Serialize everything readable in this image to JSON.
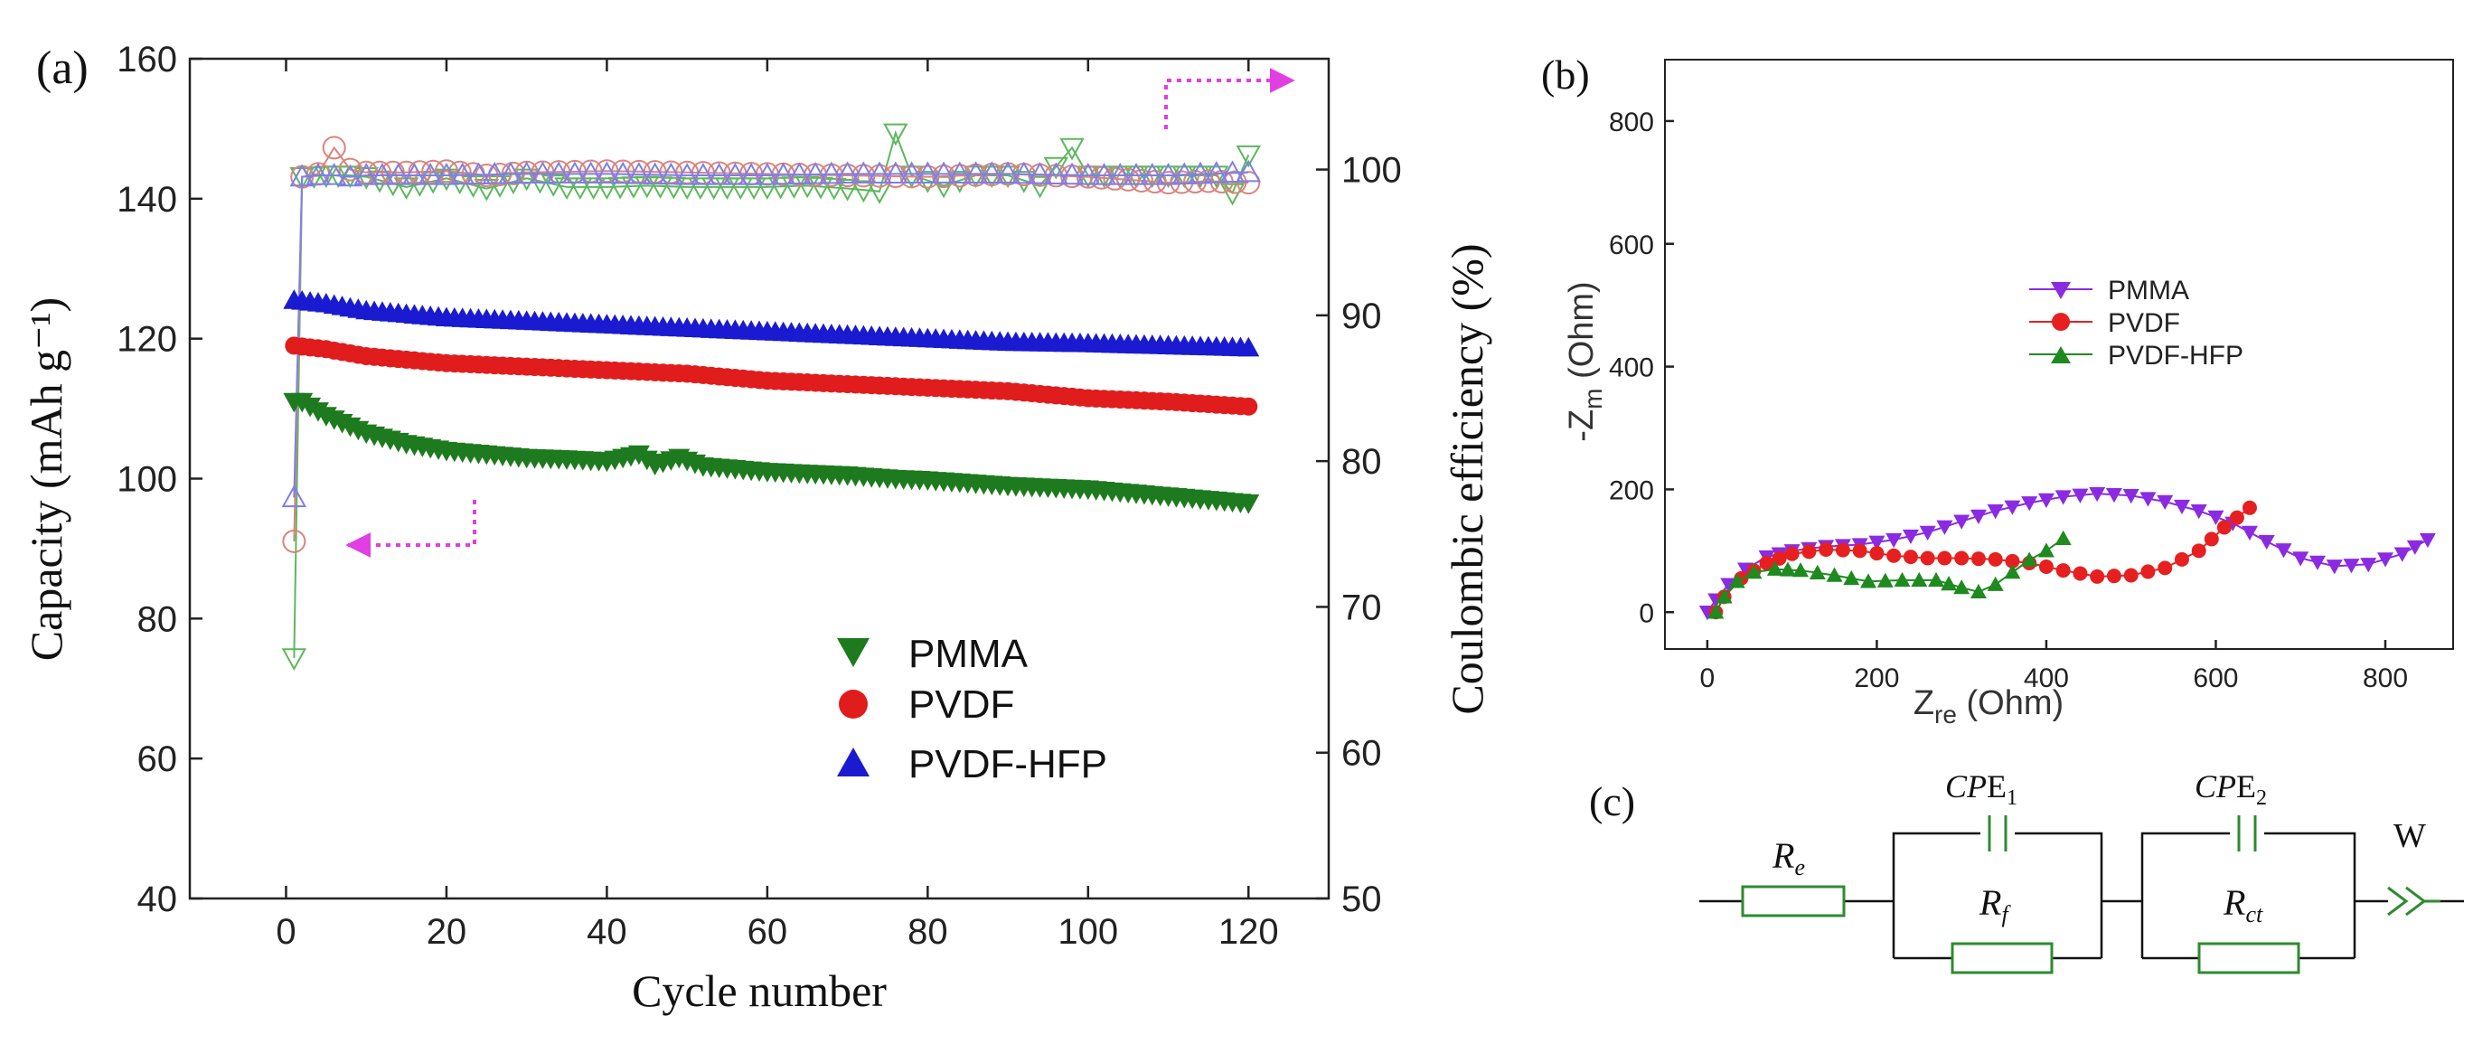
{
  "colors": {
    "pmma_a": "#1e7a1e",
    "pvdf_a": "#e01c1c",
    "pvdfhfp_a": "#1a1ad0",
    "ce_pmma": "#5cb85c",
    "ce_pvdf": "#d9847e",
    "ce_pvdfhfp": "#7f7fe6",
    "pmma_b": "#8a2be2",
    "pvdf_b": "#e62020",
    "pvdfhfp_b": "#1f8a1f",
    "arrow": "#e23fe2",
    "circuit": "#2e8b2e"
  },
  "panels": {
    "a_label": "(a)",
    "b_label": "(b)",
    "c_label": "(c)"
  },
  "circuit": {
    "re": "R",
    "re_sub": "e",
    "cpe1": "CP",
    "cpe1_E": "E",
    "cpe1_sub": "1",
    "rf": "R",
    "rf_sub": "f",
    "cpe2": "CP",
    "cpe2_E": "E",
    "cpe2_sub": "2",
    "rct": "R",
    "rct_sub": "ct",
    "w": "W"
  },
  "chart_data": [
    {
      "id": "a",
      "type": "scatter",
      "xlabel": "Cycle number",
      "ylabel_left": "Capacity (mAh g⁻¹)",
      "ylabel_right": "Coulombic efficiency (%)",
      "xlim": [
        -12,
        130
      ],
      "ylim_left": [
        40,
        160
      ],
      "ylim_right": [
        50,
        107.6
      ],
      "xticks": [
        0,
        20,
        40,
        60,
        80,
        100,
        120
      ],
      "yticks_left": [
        40,
        60,
        80,
        100,
        120,
        140,
        160
      ],
      "yticks_right": [
        50,
        60,
        70,
        80,
        90,
        100
      ],
      "legend": [
        "PMMA",
        "PVDF",
        "PVDF-HFP"
      ],
      "legend_position": "bottom-right",
      "capacity": [
        {
          "name": "PMMA",
          "x": [
            1,
            2,
            5,
            10,
            15,
            20,
            25,
            30,
            35,
            40,
            44,
            46,
            49,
            52,
            60,
            70,
            76,
            80,
            90,
            100,
            110,
            120
          ],
          "y": [
            111,
            111,
            109,
            106.5,
            105,
            104,
            103.5,
            103,
            102.8,
            102.5,
            103.5,
            102,
            103,
            101.8,
            101,
            100.5,
            100,
            99.8,
            99,
            98.5,
            97.5,
            96.5
          ]
        },
        {
          "name": "PVDF",
          "x": [
            1,
            5,
            10,
            20,
            30,
            40,
            50,
            60,
            70,
            80,
            90,
            100,
            110,
            120
          ],
          "y": [
            119,
            118.5,
            117.5,
            116.5,
            116,
            115.5,
            115,
            114,
            113.5,
            113,
            112.5,
            111.5,
            111,
            110.3
          ]
        },
        {
          "name": "PVDF-HFP",
          "x": [
            1,
            5,
            10,
            20,
            30,
            40,
            50,
            60,
            70,
            80,
            90,
            100,
            110,
            120
          ],
          "y": [
            125.5,
            125,
            124,
            123,
            122.5,
            122,
            121.5,
            121,
            120.5,
            120,
            119.5,
            119.3,
            119,
            118.7
          ]
        }
      ],
      "coulombic_efficiency": [
        {
          "name": "PMMA",
          "x": [
            1,
            2,
            5,
            8,
            10,
            15,
            20,
            25,
            30,
            35,
            40,
            45,
            50,
            55,
            60,
            65,
            70,
            74,
            76,
            78,
            82,
            86,
            90,
            94,
            98,
            100,
            104,
            108,
            112,
            116,
            118,
            120
          ],
          "y": [
            66.5,
            99.5,
            99.6,
            99.6,
            99.5,
            98.8,
            99.4,
            98.7,
            99.4,
            98.8,
            98.8,
            98.9,
            98.8,
            98.8,
            98.8,
            98.9,
            98.7,
            98.5,
            102.5,
            99.6,
            98.9,
            99.6,
            99.6,
            98.9,
            101.5,
            99.6,
            99.6,
            99.6,
            99.6,
            99.6,
            98.4,
            101
          ]
        },
        {
          "name": "PVDF",
          "x": [
            1,
            2,
            4,
            6,
            8,
            10,
            15,
            20,
            25,
            30,
            40,
            50,
            60,
            70,
            80,
            90,
            100,
            105,
            110,
            115,
            120
          ],
          "y": [
            74.5,
            99.5,
            99.7,
            101.5,
            100,
            99.8,
            99.8,
            99.9,
            99.6,
            99.8,
            99.9,
            99.8,
            99.7,
            99.6,
            99.5,
            99.7,
            99.5,
            99.3,
            99.1,
            99.2,
            99.1
          ]
        },
        {
          "name": "PVDF-HFP",
          "x": [
            1,
            2,
            4,
            6,
            8,
            10,
            20,
            30,
            40,
            50,
            60,
            70,
            80,
            90,
            100,
            110,
            120
          ],
          "y": [
            77.5,
            99.5,
            99.6,
            99.6,
            99.5,
            99.6,
            99.6,
            99.7,
            99.7,
            99.6,
            99.6,
            99.7,
            99.7,
            99.7,
            99.6,
            99.6,
            99.8
          ]
        }
      ]
    },
    {
      "id": "b",
      "type": "line",
      "xlabel": "Z",
      "xlabel_sub": "re",
      "xlabel_unit": " (Ohm)",
      "ylabel": "-Z",
      "ylabel_sub": "m",
      "ylabel_unit": " (Ohm)",
      "xlim": [
        -50,
        880
      ],
      "ylim": [
        -60,
        900
      ],
      "xticks": [
        0,
        200,
        400,
        600,
        800
      ],
      "yticks": [
        0,
        200,
        400,
        600,
        800
      ],
      "legend": [
        "PMMA",
        "PVDF",
        "PVDF-HFP"
      ],
      "legend_position": "center-left",
      "series": [
        {
          "name": "PMMA",
          "x": [
            0,
            10,
            25,
            45,
            70,
            100,
            140,
            180,
            220,
            260,
            300,
            340,
            380,
            420,
            460,
            500,
            540,
            580,
            620,
            660,
            700,
            740,
            780,
            820,
            850
          ],
          "y": [
            0,
            20,
            45,
            70,
            90,
            100,
            107,
            110,
            118,
            130,
            148,
            165,
            178,
            188,
            193,
            190,
            180,
            165,
            145,
            115,
            88,
            75,
            78,
            95,
            118
          ]
        },
        {
          "name": "PVDF",
          "x": [
            10,
            20,
            40,
            70,
            100,
            140,
            180,
            220,
            260,
            300,
            340,
            380,
            420,
            460,
            500,
            540,
            580,
            610,
            640
          ],
          "y": [
            0,
            25,
            55,
            80,
            95,
            102,
            100,
            92,
            88,
            88,
            86,
            80,
            68,
            58,
            60,
            72,
            100,
            138,
            170
          ]
        },
        {
          "name": "PVDF-HFP",
          "x": [
            10,
            20,
            35,
            55,
            80,
            110,
            150,
            190,
            230,
            270,
            300,
            320,
            340,
            360,
            380,
            400,
            420
          ],
          "y": [
            0,
            25,
            50,
            65,
            70,
            68,
            60,
            50,
            52,
            52,
            40,
            33,
            45,
            65,
            85,
            100,
            120
          ]
        }
      ]
    }
  ]
}
